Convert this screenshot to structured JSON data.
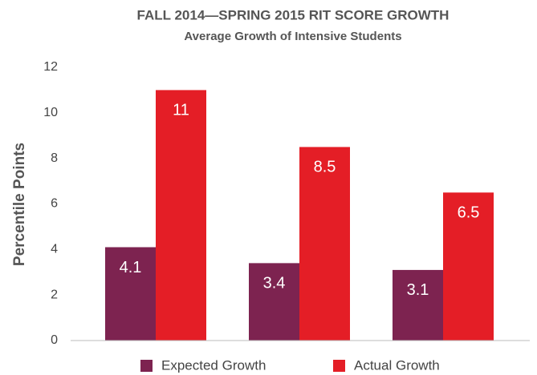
{
  "chart_data": {
    "type": "bar",
    "title": "FALL 2014—SPRING 2015 RIT SCORE GROWTH",
    "subtitle": "Average Growth of Intensive Students",
    "y_label": "Percentile Points",
    "categories": [
      null,
      null,
      null
    ],
    "series": [
      {
        "name": "Expected Growth",
        "color": "#7d2350",
        "values": [
          4.1,
          3.4,
          3.1
        ]
      },
      {
        "name": "Actual Growth",
        "color": "#e41e26",
        "values": [
          11,
          8.5,
          6.5
        ]
      }
    ],
    "ylim": [
      0,
      12
    ],
    "yticks": [
      0,
      2,
      4,
      6,
      8,
      10,
      12
    ],
    "grid": false,
    "legend": "bottom"
  }
}
